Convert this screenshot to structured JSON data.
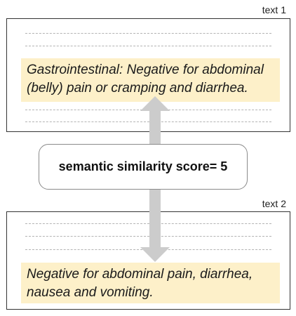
{
  "text1": {
    "label": "text 1",
    "highlight_lines": [
      "Gastrointestinal:  Negative for abdominal",
      "(belly) pain or cramping and diarrhea."
    ]
  },
  "text2": {
    "label": "text 2",
    "highlight_lines": [
      "Negative for abdominal pain, diarrhea,",
      "nausea and vomiting."
    ]
  },
  "score": {
    "text": "semantic similarity score= 5"
  },
  "colors": {
    "highlight": "#fdf0c9",
    "arrow": "#cccccc"
  }
}
